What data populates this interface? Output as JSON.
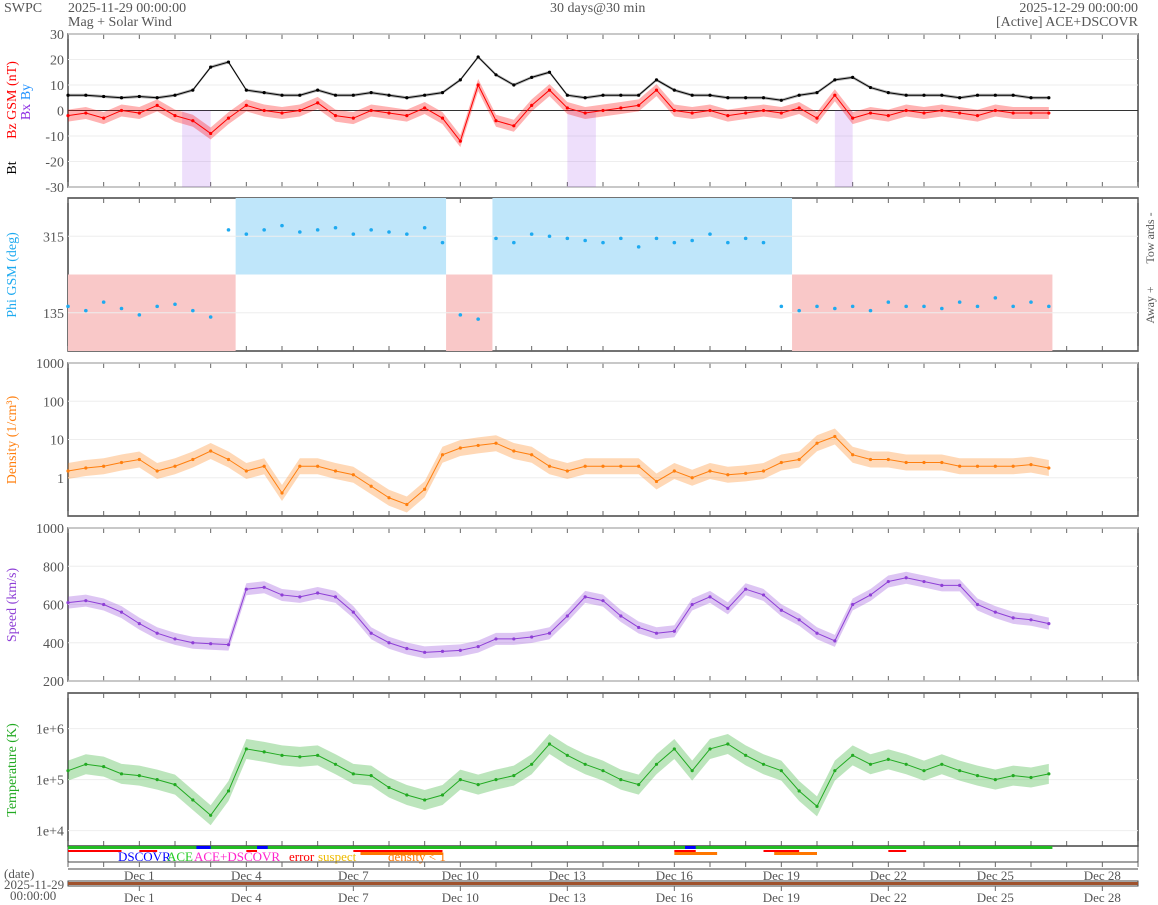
{
  "header": {
    "brand": "SWPC",
    "start": "2025-11-29 00:00:00",
    "subtitle": "Mag + Solar Wind",
    "span": "30 days@30 min",
    "end": "2025-12-29 00:00:00",
    "source": "[Active] ACE+DSCOVR"
  },
  "legend": {
    "dscovr": "DSCOVR",
    "ace": "ACE",
    "both": "ACE+DSCOVR",
    "error": "error",
    "suspect": "suspect",
    "density": "density < 1"
  },
  "date_axis": {
    "label": "(date)",
    "start_date": "2025-11-29",
    "start_time": "00:00:00"
  },
  "colors": {
    "bt": "#000000",
    "bz": "#ff0000",
    "bx": "#8a2be2",
    "by": "#1e90ff",
    "phi": "#1eaaf0",
    "towards": "#bfe6fa",
    "away": "#f9c8c8",
    "density": "#ff7f0e",
    "speed": "#8e3fd6",
    "temp": "#22aa22"
  },
  "chart_data": [
    {
      "type": "line",
      "ylabel_bt": "Bt",
      "ylabel_bz": "Bz GSM (nT)",
      "ylabel_bx": "Bx",
      "ylabel_by": "By",
      "ylim": [
        -30,
        30
      ],
      "yticks": [
        "30",
        "20",
        "10",
        "0",
        "-10",
        "-20",
        "-30"
      ],
      "ytick_values": [
        30,
        20,
        10,
        0,
        -10,
        -20,
        -30
      ],
      "x_days": [
        0,
        0.5,
        1,
        1.5,
        2,
        2.5,
        3,
        3.5,
        4,
        4.5,
        5,
        5.5,
        6,
        6.5,
        7,
        7.5,
        8,
        8.5,
        9,
        9.5,
        10,
        10.5,
        11,
        11.5,
        12,
        12.5,
        13,
        13.5,
        14,
        14.5,
        15,
        15.5,
        16,
        16.5,
        17,
        17.5,
        18,
        18.5,
        19,
        19.5,
        20,
        20.5,
        21,
        21.5,
        22,
        22.5,
        23,
        23.5,
        24,
        24.5,
        25,
        25.5,
        26,
        26.5,
        27,
        27.5
      ],
      "series": [
        {
          "name": "Bt",
          "values": [
            6,
            6,
            5.5,
            5,
            5.5,
            5,
            6,
            8,
            17,
            19,
            8,
            7,
            6,
            6,
            8,
            6,
            6,
            7,
            6,
            5,
            6,
            7,
            12,
            21,
            14,
            10,
            13,
            15,
            6,
            5,
            6,
            6,
            6,
            12,
            8,
            6,
            6,
            5,
            5,
            5,
            4,
            6,
            7,
            12,
            13,
            9,
            7,
            6,
            6,
            6,
            5,
            6,
            6,
            6,
            5,
            5
          ]
        },
        {
          "name": "Bz",
          "values": [
            -2,
            -1,
            -3,
            0,
            -1,
            2,
            -2,
            -4,
            -9,
            -3,
            2,
            0,
            -1,
            0,
            3,
            -2,
            -3,
            0,
            -1,
            -2,
            1,
            -3,
            -12,
            10,
            -4,
            -6,
            2,
            8,
            1,
            -1,
            0,
            1,
            2,
            8,
            0,
            -1,
            0,
            -2,
            -1,
            0,
            -1,
            1,
            -3,
            6,
            -3,
            -1,
            -2,
            0,
            -1,
            0,
            -1,
            -2,
            0,
            -1,
            -1,
            -1
          ]
        }
      ]
    },
    {
      "type": "scatter",
      "ylabel": "Phi GSM (deg)",
      "right_top": "Tow ards -",
      "right_bottom": "Away +",
      "yticks": [
        "315",
        "135"
      ],
      "ytick_values": [
        315,
        135
      ],
      "ylim": [
        45,
        405
      ],
      "sectors": [
        {
          "from": 0,
          "to": 4.7,
          "kind": "away"
        },
        {
          "from": 4.7,
          "to": 10.6,
          "kind": "towards"
        },
        {
          "from": 10.6,
          "to": 11.9,
          "kind": "away"
        },
        {
          "from": 11.9,
          "to": 20.3,
          "kind": "towards"
        },
        {
          "from": 20.3,
          "to": 28.5,
          "kind": "away"
        }
      ],
      "x_days": [
        0,
        0.5,
        1,
        1.5,
        2,
        2.5,
        3,
        3.5,
        4,
        4.5,
        5,
        5.5,
        6,
        6.5,
        7,
        7.5,
        8,
        8.5,
        9,
        9.5,
        10,
        10.5,
        11,
        11.5,
        12,
        12.5,
        13,
        13.5,
        14,
        14.5,
        15,
        15.5,
        16,
        16.5,
        17,
        17.5,
        18,
        18.5,
        19,
        19.5,
        20,
        20.5,
        21,
        21.5,
        22,
        22.5,
        23,
        23.5,
        24,
        24.5,
        25,
        25.5,
        26,
        26.5,
        27,
        27.5
      ],
      "values": [
        150,
        140,
        160,
        145,
        130,
        150,
        155,
        140,
        125,
        330,
        320,
        330,
        340,
        325,
        330,
        335,
        320,
        330,
        325,
        320,
        335,
        300,
        130,
        120,
        310,
        300,
        320,
        315,
        310,
        305,
        300,
        310,
        290,
        310,
        300,
        305,
        320,
        300,
        310,
        300,
        150,
        140,
        150,
        145,
        150,
        140,
        160,
        150,
        150,
        145,
        160,
        150,
        170,
        150,
        160,
        150
      ]
    },
    {
      "type": "line",
      "ylabel": "Density (1/cm³)",
      "scale": "log",
      "ylim": [
        0.1,
        1000
      ],
      "yticks": [
        "1000",
        "100",
        "10",
        "1"
      ],
      "ytick_values": [
        1000,
        100,
        10,
        1
      ],
      "x_days": [
        0,
        0.5,
        1,
        1.5,
        2,
        2.5,
        3,
        3.5,
        4,
        4.5,
        5,
        5.5,
        6,
        6.5,
        7,
        7.5,
        8,
        8.5,
        9,
        9.5,
        10,
        10.5,
        11,
        11.5,
        12,
        12.5,
        13,
        13.5,
        14,
        14.5,
        15,
        15.5,
        16,
        16.5,
        17,
        17.5,
        18,
        18.5,
        19,
        19.5,
        20,
        20.5,
        21,
        21.5,
        22,
        22.5,
        23,
        23.5,
        24,
        24.5,
        25,
        25.5,
        26,
        26.5,
        27,
        27.5
      ],
      "values": [
        1.5,
        1.8,
        2,
        2.5,
        3,
        1.5,
        2,
        3,
        5,
        3,
        1.5,
        2,
        0.4,
        2,
        2,
        1.5,
        1.2,
        0.6,
        0.3,
        0.2,
        0.5,
        4,
        6,
        7,
        8,
        5,
        4,
        2,
        1.5,
        2,
        2,
        2,
        2,
        0.8,
        1.5,
        1,
        1.5,
        1.2,
        1.3,
        1.5,
        2.5,
        3,
        8,
        12,
        4,
        3,
        3,
        2.5,
        2.5,
        2.5,
        2,
        2,
        2,
        2,
        2.2,
        1.8
      ]
    },
    {
      "type": "line",
      "ylabel": "Speed (km/s)",
      "ylim": [
        200,
        1000
      ],
      "yticks": [
        "1000",
        "800",
        "600",
        "400",
        "200"
      ],
      "ytick_values": [
        1000,
        800,
        600,
        400,
        200
      ],
      "x_days": [
        0,
        0.5,
        1,
        1.5,
        2,
        2.5,
        3,
        3.5,
        4,
        4.5,
        5,
        5.5,
        6,
        6.5,
        7,
        7.5,
        8,
        8.5,
        9,
        9.5,
        10,
        10.5,
        11,
        11.5,
        12,
        12.5,
        13,
        13.5,
        14,
        14.5,
        15,
        15.5,
        16,
        16.5,
        17,
        17.5,
        18,
        18.5,
        19,
        19.5,
        20,
        20.5,
        21,
        21.5,
        22,
        22.5,
        23,
        23.5,
        24,
        24.5,
        25,
        25.5,
        26,
        26.5,
        27,
        27.5
      ],
      "values": [
        610,
        620,
        600,
        560,
        500,
        450,
        420,
        400,
        395,
        390,
        680,
        690,
        650,
        640,
        660,
        640,
        560,
        450,
        400,
        370,
        350,
        355,
        360,
        380,
        420,
        420,
        430,
        450,
        540,
        640,
        620,
        540,
        480,
        450,
        460,
        600,
        640,
        580,
        680,
        650,
        570,
        520,
        450,
        410,
        600,
        650,
        720,
        740,
        720,
        700,
        700,
        600,
        560,
        530,
        520,
        500
      ]
    },
    {
      "type": "line",
      "ylabel": "Temperature (K)",
      "scale": "log",
      "ylim": [
        5000,
        5000000
      ],
      "yticks": [
        "1e+6",
        "1e+5",
        "1e+4"
      ],
      "ytick_values": [
        1000000,
        100000,
        10000
      ],
      "x_days": [
        0,
        0.5,
        1,
        1.5,
        2,
        2.5,
        3,
        3.5,
        4,
        4.5,
        5,
        5.5,
        6,
        6.5,
        7,
        7.5,
        8,
        8.5,
        9,
        9.5,
        10,
        10.5,
        11,
        11.5,
        12,
        12.5,
        13,
        13.5,
        14,
        14.5,
        15,
        15.5,
        16,
        16.5,
        17,
        17.5,
        18,
        18.5,
        19,
        19.5,
        20,
        20.5,
        21,
        21.5,
        22,
        22.5,
        23,
        23.5,
        24,
        24.5,
        25,
        25.5,
        26,
        26.5,
        27,
        27.5
      ],
      "values": [
        150000,
        200000,
        180000,
        130000,
        120000,
        100000,
        80000,
        40000,
        20000,
        60000,
        400000,
        350000,
        300000,
        280000,
        300000,
        200000,
        130000,
        120000,
        70000,
        50000,
        40000,
        50000,
        100000,
        80000,
        100000,
        120000,
        200000,
        500000,
        300000,
        200000,
        150000,
        100000,
        80000,
        200000,
        400000,
        150000,
        400000,
        500000,
        300000,
        200000,
        150000,
        60000,
        30000,
        150000,
        300000,
        200000,
        250000,
        200000,
        150000,
        200000,
        150000,
        120000,
        100000,
        120000,
        110000,
        130000
      ]
    },
    {
      "type": "table",
      "name": "x_axis",
      "tick_labels": [
        "Dec 1",
        "Dec 4",
        "Dec 7",
        "Dec 10",
        "Dec 13",
        "Dec 16",
        "Dec 19",
        "Dec 22",
        "Dec 25",
        "Dec 28"
      ],
      "tick_days": [
        2,
        5,
        8,
        11,
        14,
        17,
        20,
        23,
        26,
        29
      ]
    }
  ]
}
